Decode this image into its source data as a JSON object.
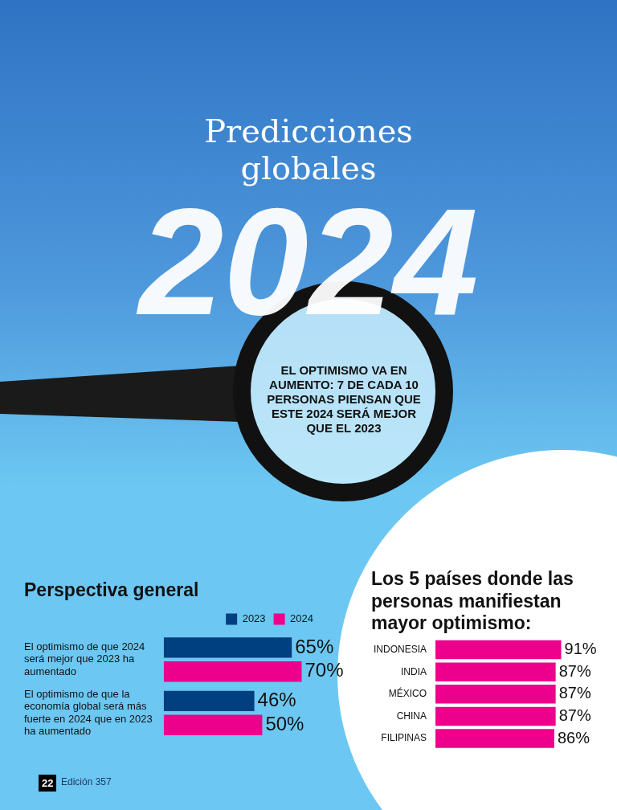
{
  "chart_data": [
    {
      "type": "other",
      "title": "Predicciones globales",
      "subtitle": "2024",
      "annotations": [
        "EL OPTIMISMO VA EN AUMENTO: 7 DE CADA 10 PERSONAS PIENSAN QUE ESTE 2024 SERÁ MEJOR QUE EL 2023",
        "22",
        "Edición 357"
      ]
    },
    {
      "type": "bar",
      "orientation": "horizontal",
      "title": "Perspectiva general",
      "categories": [
        "El optimismo de que 2024 será mejor que 2023 ha aumentado",
        "El optimismo de que la economía global será más fuerte en 2024 que en 2023 ha aumentado"
      ],
      "series": [
        {
          "name": "2023",
          "color": "#003f80",
          "values": [
            65,
            46
          ],
          "value_labels": [
            "65%",
            "46%"
          ]
        },
        {
          "name": "2024",
          "color": "#ec008c",
          "values": [
            70,
            50
          ],
          "value_labels": [
            "70%",
            "50%"
          ]
        }
      ],
      "legend": "top"
    },
    {
      "type": "bar",
      "orientation": "horizontal",
      "title": "Los 5 países donde las personas manifiestan mayor optimismo:",
      "categories": [
        "INDONESIA",
        "INDIA",
        "MÉXICO",
        "CHINA",
        "FILIPINAS"
      ],
      "values": [
        91,
        87,
        87,
        87,
        86
      ],
      "value_labels": [
        "91%",
        "87%",
        "87%",
        "87%",
        "86%"
      ],
      "color": "#ec008c"
    }
  ]
}
